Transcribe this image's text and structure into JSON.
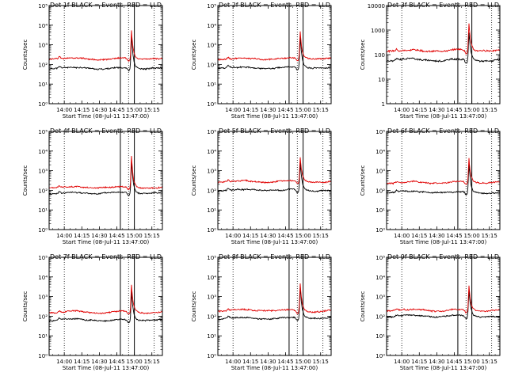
{
  "figure": {
    "start_time_hours": 13.7833,
    "end_time_hours": 15.4
  },
  "chart_data": [
    {
      "type": "line",
      "detector": "1f",
      "title": "Det 1f BLACK = Events, RED = LLD",
      "xlabel": "Start Time (08-Jul-11 13:47:00)",
      "ylabel": "Counts/sec",
      "yscale": "log",
      "ylim_exp": [
        0,
        5
      ],
      "ytick_labels": [
        "10⁰",
        "10¹",
        "10²",
        "10³",
        "10⁴",
        "10⁵"
      ],
      "xtick_labels": [
        "14:00",
        "14:15",
        "14:30",
        "14:45",
        "15:00",
        "15:15"
      ],
      "xtick_hours": [
        14.0,
        14.25,
        14.5,
        14.75,
        15.0,
        15.25
      ],
      "dotted_lines_hours": [
        14.0,
        14.917,
        15.283
      ],
      "solid_lines_hours": [
        14.8,
        15.0
      ],
      "series": [
        {
          "name": "Events",
          "color": "#000000",
          "baseline_exp": 1.82,
          "peak_exp": 3.55,
          "peak_hour": 14.96,
          "seed": 11
        },
        {
          "name": "LLD",
          "color": "#e00000",
          "baseline_exp": 2.3,
          "peak_exp": 3.75,
          "peak_hour": 14.96,
          "seed": 12
        }
      ]
    },
    {
      "type": "line",
      "detector": "2f",
      "title": "Det 2f BLACK = Events, RED = LLD",
      "xlabel": "Start Time (08-Jul-11 13:47:00)",
      "ylabel": "Counts/sec",
      "yscale": "log",
      "ylim_exp": [
        0,
        5
      ],
      "ytick_labels": [
        "10⁰",
        "10¹",
        "10²",
        "10³",
        "10⁴",
        "10⁵"
      ],
      "xtick_labels": [
        "14:00",
        "14:15",
        "14:30",
        "14:45",
        "15:00",
        "15:15"
      ],
      "xtick_hours": [
        14.0,
        14.25,
        14.5,
        14.75,
        15.0,
        15.25
      ],
      "dotted_lines_hours": [
        14.0,
        14.917,
        15.283
      ],
      "solid_lines_hours": [
        14.8,
        15.0
      ],
      "series": [
        {
          "name": "Events",
          "color": "#000000",
          "baseline_exp": 1.85,
          "peak_exp": 3.45,
          "peak_hour": 14.96,
          "seed": 21
        },
        {
          "name": "LLD",
          "color": "#e00000",
          "baseline_exp": 2.3,
          "peak_exp": 3.65,
          "peak_hour": 14.96,
          "seed": 22
        }
      ]
    },
    {
      "type": "line",
      "detector": "3f",
      "title": "Det 3f BLACK = Events, RED = LLD",
      "xlabel": "Start Time (08-Jul-11 13:47:00)",
      "ylabel": "Counts/sec",
      "yscale": "log",
      "ylim_exp": [
        0,
        4
      ],
      "ytick_labels": [
        "1",
        "10",
        "100",
        "1000",
        "10000"
      ],
      "xtick_labels": [
        "14:00",
        "14:15",
        "14:30",
        "14:45",
        "15:00",
        "15:15"
      ],
      "xtick_hours": [
        14.0,
        14.25,
        14.5,
        14.75,
        15.0,
        15.25
      ],
      "dotted_lines_hours": [
        14.0,
        14.917,
        15.283
      ],
      "solid_lines_hours": [
        14.8,
        15.0
      ],
      "series": [
        {
          "name": "Events",
          "color": "#000000",
          "baseline_exp": 1.78,
          "peak_exp": 2.9,
          "peak_hour": 14.96,
          "seed": 31
        },
        {
          "name": "LLD",
          "color": "#e00000",
          "baseline_exp": 2.18,
          "peak_exp": 3.3,
          "peak_hour": 14.96,
          "seed": 32
        }
      ]
    },
    {
      "type": "line",
      "detector": "4f",
      "title": "Det 4f BLACK = Events, RED = LLD",
      "xlabel": "Start Time (08-Jul-11 13:47:00)",
      "ylabel": "Counts/sec",
      "yscale": "log",
      "ylim_exp": [
        0,
        5
      ],
      "ytick_labels": [
        "10⁰",
        "10¹",
        "10²",
        "10³",
        "10⁴",
        "10⁵"
      ],
      "xtick_labels": [
        "14:00",
        "14:15",
        "14:30",
        "14:45",
        "15:00",
        "15:15"
      ],
      "xtick_hours": [
        14.0,
        14.25,
        14.5,
        14.75,
        15.0,
        15.25
      ],
      "dotted_lines_hours": [
        14.0,
        14.917,
        15.283
      ],
      "solid_lines_hours": [
        14.8,
        15.0
      ],
      "series": [
        {
          "name": "Events",
          "color": "#000000",
          "baseline_exp": 1.85,
          "peak_exp": 3.5,
          "peak_hour": 14.96,
          "seed": 41
        },
        {
          "name": "LLD",
          "color": "#e00000",
          "baseline_exp": 2.15,
          "peak_exp": 3.75,
          "peak_hour": 14.96,
          "seed": 42
        }
      ]
    },
    {
      "type": "line",
      "detector": "5f",
      "title": "Det 5f BLACK = Events, RED = LLD",
      "xlabel": "Start Time (08-Jul-11 13:47:00)",
      "ylabel": "Counts/sec",
      "yscale": "log",
      "ylim_exp": [
        0,
        5
      ],
      "ytick_labels": [
        "10⁰",
        "10¹",
        "10²",
        "10³",
        "10⁴",
        "10⁵"
      ],
      "xtick_labels": [
        "14:00",
        "14:15",
        "14:30",
        "14:45",
        "15:00",
        "15:15"
      ],
      "xtick_hours": [
        14.0,
        14.25,
        14.5,
        14.75,
        15.0,
        15.25
      ],
      "dotted_lines_hours": [
        14.0,
        14.917,
        15.283
      ],
      "solid_lines_hours": [
        14.8,
        15.0
      ],
      "series": [
        {
          "name": "Events",
          "color": "#000000",
          "baseline_exp": 2.0,
          "peak_exp": 3.45,
          "peak_hour": 14.96,
          "seed": 51
        },
        {
          "name": "LLD",
          "color": "#e00000",
          "baseline_exp": 2.45,
          "peak_exp": 3.7,
          "peak_hour": 14.96,
          "seed": 52
        }
      ]
    },
    {
      "type": "line",
      "detector": "6f",
      "title": "Det 6f BLACK = Events, RED = LLD",
      "xlabel": "Start Time (08-Jul-11 13:47:00)",
      "ylabel": "Counts/sec",
      "yscale": "log",
      "ylim_exp": [
        0,
        5
      ],
      "ytick_labels": [
        "10⁰",
        "10¹",
        "10²",
        "10³",
        "10⁴",
        "10⁵"
      ],
      "xtick_labels": [
        "14:00",
        "14:15",
        "14:30",
        "14:45",
        "15:00",
        "15:15"
      ],
      "xtick_hours": [
        14.0,
        14.25,
        14.5,
        14.75,
        15.0,
        15.25
      ],
      "dotted_lines_hours": [
        14.0,
        14.917,
        15.283
      ],
      "solid_lines_hours": [
        14.8,
        15.0
      ],
      "series": [
        {
          "name": "Events",
          "color": "#000000",
          "baseline_exp": 1.9,
          "peak_exp": 3.35,
          "peak_hour": 14.96,
          "seed": 61
        },
        {
          "name": "LLD",
          "color": "#e00000",
          "baseline_exp": 2.4,
          "peak_exp": 3.6,
          "peak_hour": 14.96,
          "seed": 62
        }
      ]
    },
    {
      "type": "line",
      "detector": "7f",
      "title": "Det 7f BLACK = Events, RED = LLD",
      "xlabel": "Start Time (08-Jul-11 13:47:00)",
      "ylabel": "Counts/sec",
      "yscale": "log",
      "ylim_exp": [
        0,
        5
      ],
      "ytick_labels": [
        "10⁰",
        "10¹",
        "10²",
        "10³",
        "10⁴",
        "10⁵"
      ],
      "xtick_labels": [
        "14:00",
        "14:15",
        "14:30",
        "14:45",
        "15:00",
        "15:15"
      ],
      "xtick_hours": [
        14.0,
        14.25,
        14.5,
        14.75,
        15.0,
        15.25
      ],
      "dotted_lines_hours": [
        14.0,
        14.917,
        15.283
      ],
      "solid_lines_hours": [
        14.8,
        15.0
      ],
      "series": [
        {
          "name": "Events",
          "color": "#000000",
          "baseline_exp": 1.82,
          "peak_exp": 3.35,
          "peak_hour": 14.96,
          "seed": 71
        },
        {
          "name": "LLD",
          "color": "#e00000",
          "baseline_exp": 2.2,
          "peak_exp": 3.6,
          "peak_hour": 14.96,
          "seed": 72
        }
      ]
    },
    {
      "type": "line",
      "detector": "8f",
      "title": "Det 8f BLACK = Events, RED = LLD",
      "xlabel": "Start Time (08-Jul-11 13:47:00)",
      "ylabel": "Counts/sec",
      "yscale": "log",
      "ylim_exp": [
        0,
        5
      ],
      "ytick_labels": [
        "10⁰",
        "10¹",
        "10²",
        "10³",
        "10⁴",
        "10⁵"
      ],
      "xtick_labels": [
        "14:00",
        "14:15",
        "14:30",
        "14:45",
        "15:00",
        "15:15"
      ],
      "xtick_hours": [
        14.0,
        14.25,
        14.5,
        14.75,
        15.0,
        15.25
      ],
      "dotted_lines_hours": [
        14.0,
        14.917,
        15.283
      ],
      "solid_lines_hours": [
        14.8,
        15.0
      ],
      "series": [
        {
          "name": "Events",
          "color": "#000000",
          "baseline_exp": 1.9,
          "peak_exp": 3.5,
          "peak_hour": 14.96,
          "seed": 81
        },
        {
          "name": "LLD",
          "color": "#e00000",
          "baseline_exp": 2.3,
          "peak_exp": 3.7,
          "peak_hour": 14.96,
          "seed": 82
        }
      ]
    },
    {
      "type": "line",
      "detector": "9f",
      "title": "Det 9f BLACK = Events, RED = LLD",
      "xlabel": "Start Time (08-Jul-11 13:47:00)",
      "ylabel": "Counts/sec",
      "yscale": "log",
      "ylim_exp": [
        0,
        5
      ],
      "ytick_labels": [
        "10⁰",
        "10¹",
        "10²",
        "10³",
        "10⁴",
        "10⁵"
      ],
      "xtick_labels": [
        "14:00",
        "14:15",
        "14:30",
        "14:45",
        "15:00",
        "15:15"
      ],
      "xtick_hours": [
        14.0,
        14.25,
        14.5,
        14.75,
        15.0,
        15.25
      ],
      "dotted_lines_hours": [
        14.0,
        14.917,
        15.283
      ],
      "solid_lines_hours": [
        14.8,
        15.0
      ],
      "series": [
        {
          "name": "Events",
          "color": "#000000",
          "baseline_exp": 2.0,
          "peak_exp": 3.35,
          "peak_hour": 14.96,
          "seed": 91
        },
        {
          "name": "LLD",
          "color": "#e00000",
          "baseline_exp": 2.3,
          "peak_exp": 3.6,
          "peak_hour": 14.96,
          "seed": 92
        }
      ]
    }
  ]
}
